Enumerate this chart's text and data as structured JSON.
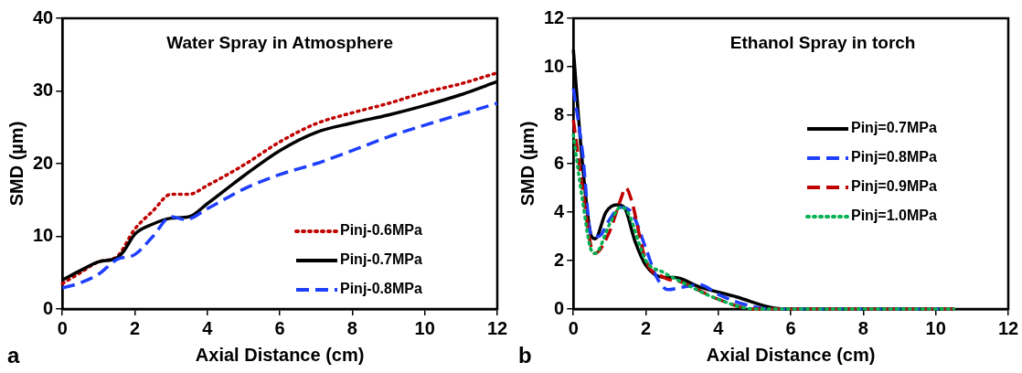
{
  "chart_data": [
    {
      "type": "line",
      "title": "Water Spray in Atmosphere",
      "xlabel": "Axial Distance (cm)",
      "ylabel": "SMD (µm)",
      "annotations": [
        "a"
      ],
      "xlim": [
        0,
        12
      ],
      "xticks": [
        0,
        2,
        4,
        6,
        8,
        10,
        12
      ],
      "ylim": [
        0,
        40
      ],
      "yticks": [
        0,
        10,
        20,
        30,
        40
      ],
      "grid": false,
      "legend": "bottom right",
      "marker": "none",
      "series": [
        {
          "name": "Pinj-0.6MPa",
          "color": "#c00000",
          "line_style": "dotted",
          "x": [
            0,
            0.5,
            1,
            1.5,
            2,
            2.5,
            3,
            3.5,
            4,
            5,
            6,
            7,
            8,
            9,
            10,
            11,
            12
          ],
          "values": [
            3.5,
            5,
            6.5,
            7.2,
            11,
            13.5,
            15.8,
            15.8,
            17,
            19.8,
            23,
            25.5,
            27,
            28.3,
            29.8,
            31,
            32.5
          ]
        },
        {
          "name": "Pinj-0.7MPa",
          "color": "#000000",
          "line_style": "solid",
          "x": [
            0,
            0.5,
            1,
            1.5,
            1.7,
            2,
            2.5,
            3,
            3.5,
            4,
            5,
            6,
            7,
            8,
            9,
            10,
            11,
            12
          ],
          "values": [
            4,
            5.3,
            6.5,
            7,
            8,
            10.3,
            11.7,
            12.5,
            12.7,
            14.5,
            18.3,
            21.8,
            24.3,
            25.6,
            26.7,
            28,
            29.5,
            31.3
          ]
        },
        {
          "name": "Pinj-0.8MPa",
          "color": "#1f3fff",
          "line_style": "dashed",
          "x": [
            0,
            0.5,
            1,
            1.5,
            2,
            2.5,
            3,
            3.4,
            4,
            5,
            6,
            7,
            8,
            9,
            10,
            11,
            12
          ],
          "values": [
            2.9,
            3.6,
            4.8,
            6.8,
            7.5,
            10,
            12.7,
            12.3,
            13.8,
            16.5,
            18.5,
            20,
            21.8,
            23.7,
            25.3,
            26.8,
            28.3
          ]
        }
      ]
    },
    {
      "type": "line",
      "title": "Ethanol Spray in torch",
      "xlabel": "Axial Distance (cm)",
      "ylabel": "SMD (µm)",
      "annotations": [
        "b"
      ],
      "xlim": [
        0,
        12
      ],
      "xticks": [
        0,
        2,
        4,
        6,
        8,
        10,
        12
      ],
      "ylim": [
        0,
        12
      ],
      "yticks": [
        0,
        2,
        4,
        6,
        8,
        10,
        12
      ],
      "grid": false,
      "legend": "right",
      "marker": "none",
      "series": [
        {
          "name": "Pinj=0.7MPa",
          "color": "#000000",
          "line_style": "solid",
          "x": [
            0,
            0.25,
            0.5,
            0.6,
            0.9,
            1.2,
            1.4,
            1.7,
            2,
            2.5,
            2.8,
            3.5,
            4.5,
            5.5,
            6,
            10.5
          ],
          "values": [
            10.7,
            6,
            3,
            2.9,
            4,
            4.3,
            4.2,
            2.8,
            1.8,
            1.3,
            1.3,
            0.9,
            0.5,
            0.05,
            0,
            0
          ]
        },
        {
          "name": "Pinj=0.8MPa",
          "color": "#1f3fff",
          "line_style": "dashed",
          "x": [
            0,
            0.25,
            0.5,
            0.7,
            1,
            1.3,
            1.6,
            2,
            2.3,
            2.6,
            3,
            3.5,
            4,
            4.7,
            5.5,
            10.5
          ],
          "values": [
            9.1,
            6.5,
            3,
            3,
            3.7,
            4.2,
            4,
            2.5,
            1.3,
            0.8,
            0.9,
            1,
            0.6,
            0.2,
            0,
            0
          ]
        },
        {
          "name": "Pinj=0.9MPa",
          "color": "#c00000",
          "line_style": "dashed",
          "x": [
            0,
            0.25,
            0.5,
            0.6,
            1,
            1.3,
            1.45,
            1.6,
            2,
            2.5,
            3,
            4,
            5,
            10.5
          ],
          "values": [
            7.8,
            5,
            2.5,
            2.3,
            3.2,
            4.5,
            5,
            4.5,
            2,
            1.3,
            1.1,
            0.4,
            0,
            0
          ]
        },
        {
          "name": "Pinj=1.0MPa",
          "color": "#00b050",
          "line_style": "dotted",
          "x": [
            0,
            0.25,
            0.5,
            0.6,
            1,
            1.3,
            1.5,
            2,
            2.5,
            3,
            4,
            5,
            10.5
          ],
          "values": [
            7.2,
            4.5,
            2.4,
            2.3,
            3.5,
            4.2,
            4,
            2,
            1.5,
            1.1,
            0.4,
            0,
            0
          ]
        }
      ]
    }
  ]
}
